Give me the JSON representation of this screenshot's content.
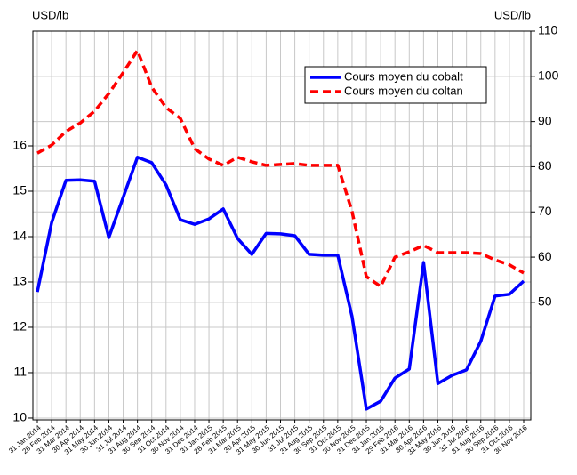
{
  "chart_data": {
    "type": "line",
    "y_label": "USD/lb",
    "y2_label": "USD/lb",
    "categories": [
      "31 Jan 2014",
      "28 Feb 2014",
      "31 Mar 2014",
      "30 Apr 2014",
      "31 May 2014",
      "30 Jun 2014",
      "31 Jul 2014",
      "31 Aug 2014",
      "30 Sep 2014",
      "31 Oct 2014",
      "30 Nov 2014",
      "31 Dec 2014",
      "31 Jan 2015",
      "28 Feb 2015",
      "31 Mar 2015",
      "30 Apr 2015",
      "31 May 2015",
      "30 Jun 2015",
      "31 Jul 2015",
      "31 Aug 2015",
      "30 Sep 2015",
      "31 Oct 2015",
      "30 Nov 2015",
      "31 Dec 2015",
      "31 Jan 2016",
      "29 Feb 2016",
      "31 Mar 2016",
      "30 Apr 2016",
      "31 May 2016",
      "30 Jun 2016",
      "31 Jul 2016",
      "31 Aug 2016",
      "30 Sep 2016",
      "31 Oct 2016",
      "30 Nov 2016"
    ],
    "series": [
      {
        "name": "Cours moyen du cobalt",
        "color": "#0000ff",
        "axis": "y",
        "dash": false,
        "values": [
          12.78,
          14.31,
          15.24,
          15.25,
          15.22,
          13.98,
          14.86,
          15.75,
          15.63,
          15.14,
          14.37,
          14.27,
          14.39,
          14.61,
          13.96,
          13.61,
          14.07,
          14.06,
          14.02,
          13.61,
          13.59,
          13.59,
          12.24,
          10.2,
          10.37,
          10.88,
          11.08,
          13.43,
          10.76,
          10.94,
          11.06,
          11.69,
          12.69,
          12.73,
          13.02
        ]
      },
      {
        "name": "Cours moyen du coltan",
        "color": "#ff0000",
        "axis": "y2",
        "dash": true,
        "values": [
          83.0,
          84.8,
          87.8,
          89.7,
          92.3,
          96.2,
          100.8,
          105.7,
          97.6,
          93.1,
          90.7,
          84.0,
          81.7,
          80.3,
          82.1,
          81.1,
          80.3,
          80.5,
          80.7,
          80.3,
          80.3,
          80.3,
          70.1,
          55.7,
          53.5,
          60.0,
          61.2,
          62.6,
          61.0,
          61.0,
          61.0,
          60.8,
          59.4,
          58.3,
          56.5
        ]
      }
    ],
    "ylim": [
      9.96,
      18.53
    ],
    "yticks": [
      10,
      11,
      12,
      13,
      14,
      15,
      16
    ],
    "y2lim": [
      24,
      110
    ],
    "y2ticks": [
      50,
      60,
      70,
      80,
      90,
      100,
      110
    ],
    "grid": true,
    "legend": "upper right"
  }
}
